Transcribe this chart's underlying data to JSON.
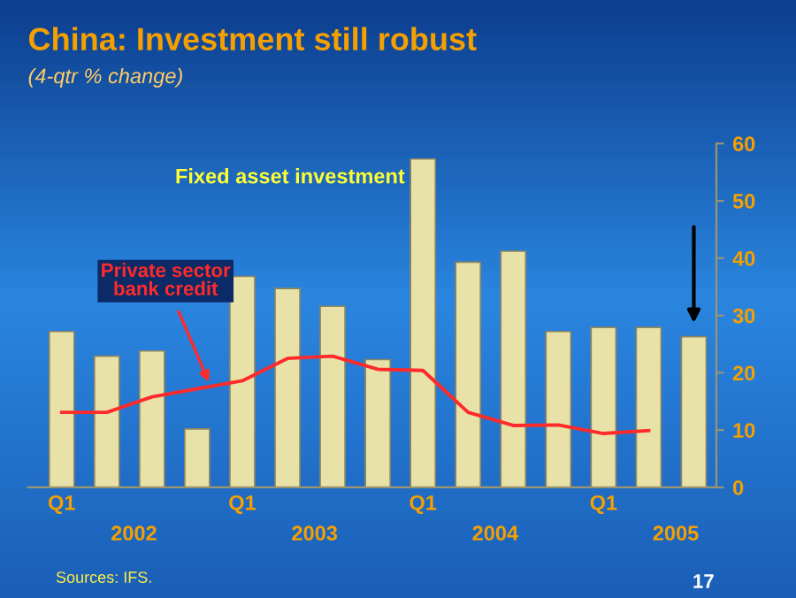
{
  "chart_data": {
    "type": "bar",
    "title": "China: Investment still robust",
    "subtitle": "(4-qtr % change)",
    "categories": [
      "Q1",
      null,
      null,
      null,
      "Q1",
      null,
      null,
      null,
      "Q1",
      null,
      null,
      null,
      "Q1",
      null,
      null
    ],
    "series": [
      {
        "name": "Fixed asset investment",
        "color": "#e8e2a8",
        "values": [
          27.2,
          22.9,
          23.8,
          10.2,
          36.8,
          34.7,
          31.6,
          22.3,
          57.3,
          39.3,
          41.2,
          27.2,
          27.9,
          27.9,
          26.3
        ]
      },
      {
        "name": "Private sector bank credit",
        "type": "line",
        "color": "#ff2a2a",
        "values": [
          13.1,
          13.1,
          15.8,
          17.2,
          18.6,
          22.5,
          22.9,
          20.6,
          20.4,
          13.1,
          10.8,
          10.9,
          9.4,
          9.9,
          null
        ]
      }
    ],
    "ylim": [
      0,
      60
    ],
    "yticks": [
      0,
      10,
      20,
      30,
      40,
      50,
      60
    ],
    "grid": false,
    "legend": false,
    "annotations": [
      "2002",
      "2003",
      "2004",
      "2005",
      "Sources: IFS.",
      "17"
    ]
  }
}
